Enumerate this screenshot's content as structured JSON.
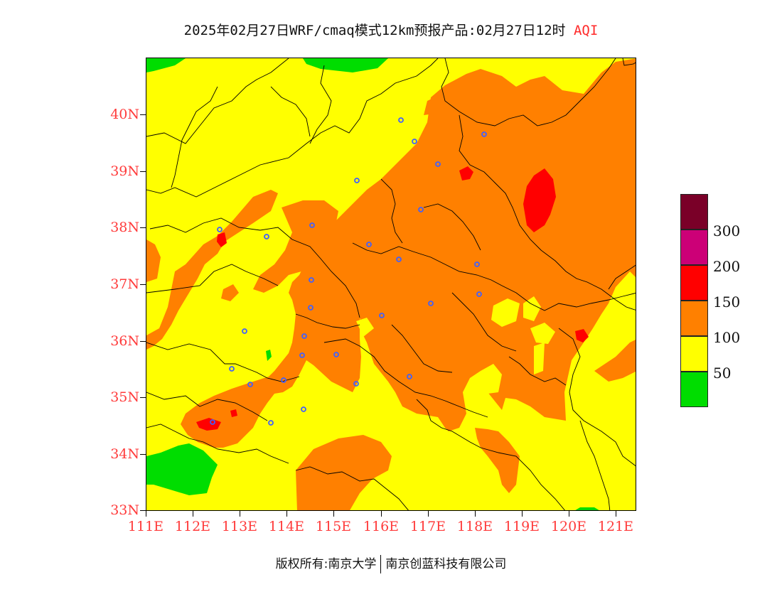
{
  "title": {
    "main": "2025年02月27日WRF/cmaq模式12km预报产品:02月27日12时",
    "variable": "AQI"
  },
  "axes": {
    "lat_labels": [
      "40N",
      "39N",
      "38N",
      "37N",
      "36N",
      "35N",
      "34N",
      "33N"
    ],
    "lon_labels": [
      "111E",
      "112E",
      "113E",
      "114E",
      "115E",
      "116E",
      "117E",
      "118E",
      "119E",
      "120E",
      "121E"
    ]
  },
  "legend": {
    "labels": [
      "300",
      "200",
      "150",
      "100",
      "50"
    ],
    "colors": [
      "#7a0028",
      "#cc0077",
      "#ff0000",
      "#ff8000",
      "#ffff00",
      "#00dd00"
    ]
  },
  "footer": {
    "left": "版权所有:南京大学",
    "right": "南京创蓝科技有限公司"
  },
  "map": {
    "lon_range": [
      111,
      121.5
    ],
    "lat_range": [
      33,
      41
    ],
    "colors": {
      "good": "#00dd00",
      "moderate": "#ffff00",
      "unhealthy_sensitive": "#ff8000",
      "unhealthy": "#ff0000",
      "boundary": "#000000",
      "city_marker": "#4060ff"
    }
  }
}
